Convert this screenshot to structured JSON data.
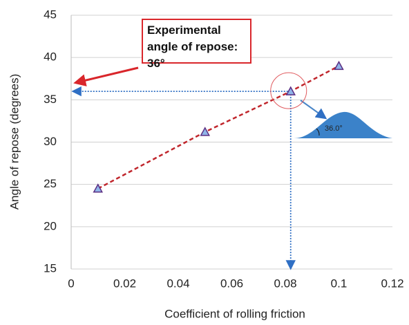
{
  "chart_data": {
    "type": "scatter",
    "x_label": "Coefficient of rolling friction",
    "y_label": "Angle of repose (degrees)",
    "series": [
      {
        "x": [
          0.01,
          0.05,
          0.082,
          0.1
        ],
        "values": [
          24.5,
          31.2,
          36,
          39
        ],
        "color": "#8fb4e8",
        "edge_color": "#5a2d82",
        "trend_color": "#c0262c"
      }
    ],
    "xlim": [
      0,
      0.12
    ],
    "xticks": [
      0,
      0.02,
      0.04,
      0.06,
      0.08,
      0.1,
      0.12
    ],
    "ylim": [
      15,
      45
    ],
    "yticks": [
      15,
      20,
      25,
      30,
      35,
      40,
      45
    ],
    "grid": true,
    "annotations": {
      "box": "Experimental angle of repose: 36°",
      "inset_angle": "36.0°"
    }
  }
}
